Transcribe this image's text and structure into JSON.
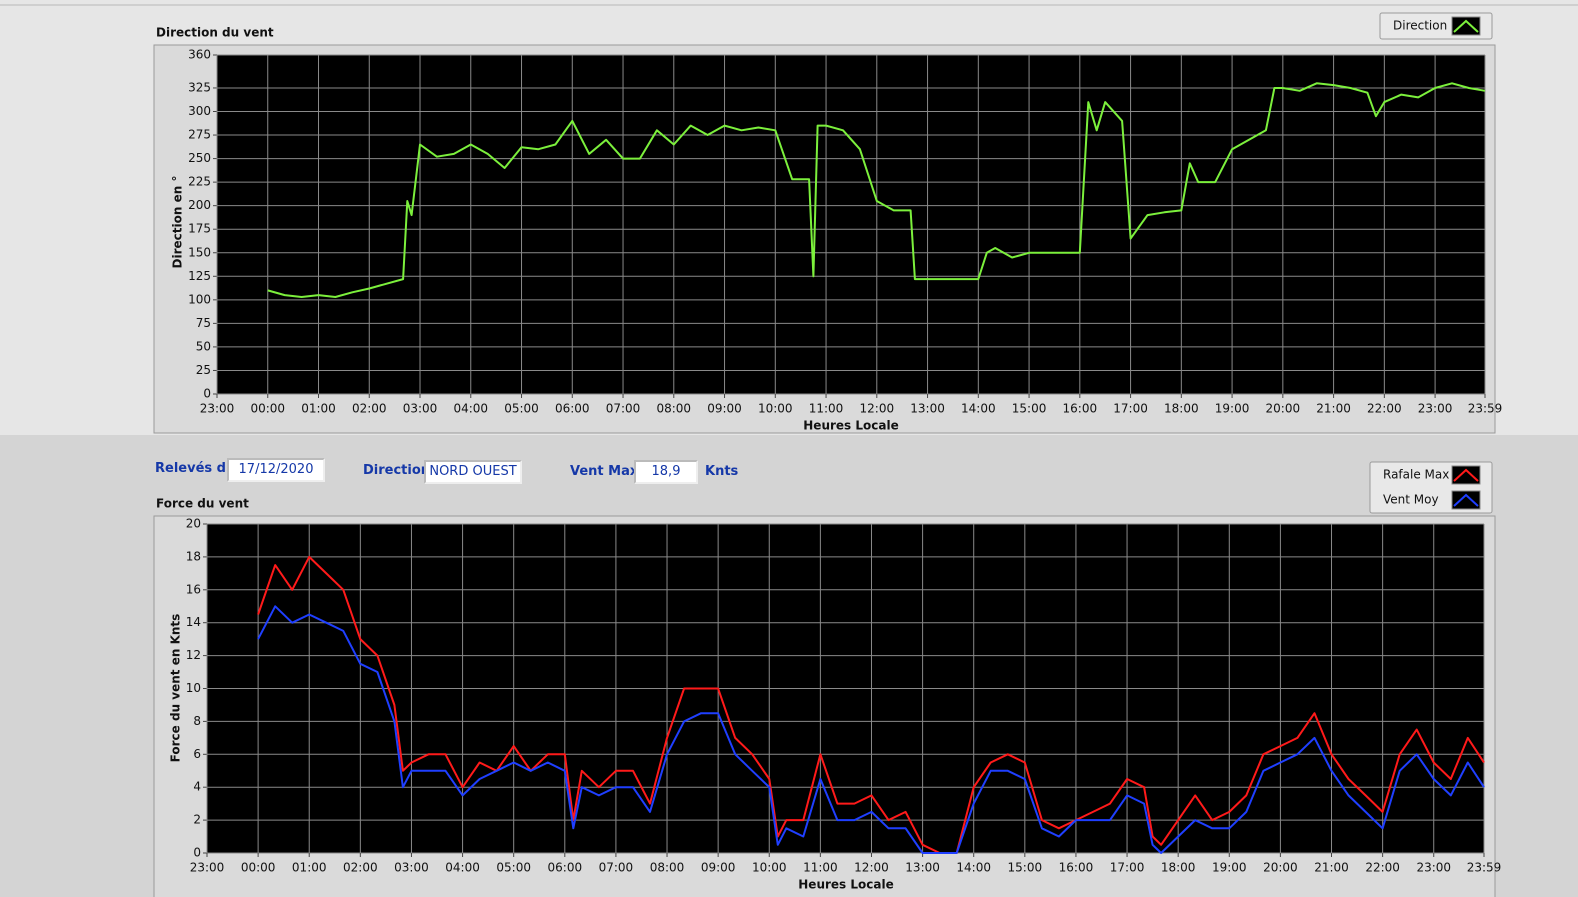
{
  "chart_data": [
    {
      "type": "line",
      "title": "Direction du vent",
      "ylabel": "Direction en °",
      "xlabel": "Heures Locale",
      "xlim": [
        -60,
        1439
      ],
      "xticks": [
        {
          "value": -60,
          "label": "23:00"
        },
        {
          "value": 0,
          "label": "00:00"
        },
        {
          "value": 60,
          "label": "01:00"
        },
        {
          "value": 120,
          "label": "02:00"
        },
        {
          "value": 180,
          "label": "03:00"
        },
        {
          "value": 240,
          "label": "04:00"
        },
        {
          "value": 300,
          "label": "05:00"
        },
        {
          "value": 360,
          "label": "06:00"
        },
        {
          "value": 420,
          "label": "07:00"
        },
        {
          "value": 480,
          "label": "08:00"
        },
        {
          "value": 540,
          "label": "09:00"
        },
        {
          "value": 600,
          "label": "10:00"
        },
        {
          "value": 660,
          "label": "11:00"
        },
        {
          "value": 720,
          "label": "12:00"
        },
        {
          "value": 780,
          "label": "13:00"
        },
        {
          "value": 840,
          "label": "14:00"
        },
        {
          "value": 900,
          "label": "15:00"
        },
        {
          "value": 960,
          "label": "16:00"
        },
        {
          "value": 1020,
          "label": "17:00"
        },
        {
          "value": 1080,
          "label": "18:00"
        },
        {
          "value": 1140,
          "label": "19:00"
        },
        {
          "value": 1200,
          "label": "20:00"
        },
        {
          "value": 1260,
          "label": "21:00"
        },
        {
          "value": 1320,
          "label": "22:00"
        },
        {
          "value": 1380,
          "label": "23:00"
        },
        {
          "value": 1439,
          "label": "23:59"
        }
      ],
      "ylim": [
        0,
        360
      ],
      "yticks": [
        0,
        25,
        50,
        75,
        100,
        125,
        150,
        175,
        200,
        225,
        250,
        275,
        300,
        325,
        360
      ],
      "grid": true,
      "x": [
        0,
        20,
        40,
        60,
        80,
        100,
        120,
        140,
        160,
        165,
        170,
        180,
        200,
        220,
        240,
        260,
        280,
        300,
        320,
        340,
        360,
        380,
        400,
        420,
        440,
        460,
        480,
        500,
        520,
        540,
        560,
        580,
        600,
        620,
        640,
        645,
        650,
        660,
        680,
        700,
        720,
        740,
        760,
        765,
        780,
        800,
        820,
        840,
        850,
        860,
        880,
        900,
        960,
        970,
        980,
        990,
        1010,
        1020,
        1040,
        1060,
        1080,
        1090,
        1100,
        1120,
        1140,
        1160,
        1180,
        1190,
        1200,
        1220,
        1240,
        1260,
        1280,
        1300,
        1310,
        1320,
        1340,
        1360,
        1380,
        1400,
        1420,
        1439
      ],
      "series": [
        {
          "name": "Direction",
          "color": "#7cf03c",
          "values": [
            110,
            105,
            103,
            105,
            103,
            108,
            112,
            117,
            122,
            205,
            190,
            265,
            252,
            255,
            265,
            255,
            240,
            262,
            260,
            265,
            290,
            255,
            270,
            250,
            250,
            280,
            265,
            285,
            275,
            285,
            280,
            283,
            280,
            228,
            228,
            125,
            285,
            285,
            280,
            260,
            205,
            195,
            195,
            122,
            122,
            122,
            122,
            122,
            150,
            155,
            145,
            150,
            150,
            310,
            280,
            310,
            290,
            165,
            190,
            193,
            195,
            245,
            225,
            225,
            260,
            270,
            280,
            325,
            325,
            322,
            330,
            328,
            325,
            320,
            295,
            310,
            318,
            315,
            325,
            330,
            325,
            322
          ]
        }
      ]
    },
    {
      "type": "line",
      "title": "Force du vent",
      "ylabel": "Force du vent en Knts",
      "xlabel": "Heures Locale",
      "xlim": [
        -60,
        1439
      ],
      "xticks": [
        {
          "value": -60,
          "label": "23:00"
        },
        {
          "value": 0,
          "label": "00:00"
        },
        {
          "value": 60,
          "label": "01:00"
        },
        {
          "value": 120,
          "label": "02:00"
        },
        {
          "value": 180,
          "label": "03:00"
        },
        {
          "value": 240,
          "label": "04:00"
        },
        {
          "value": 300,
          "label": "05:00"
        },
        {
          "value": 360,
          "label": "06:00"
        },
        {
          "value": 420,
          "label": "07:00"
        },
        {
          "value": 480,
          "label": "08:00"
        },
        {
          "value": 540,
          "label": "09:00"
        },
        {
          "value": 600,
          "label": "10:00"
        },
        {
          "value": 660,
          "label": "11:00"
        },
        {
          "value": 720,
          "label": "12:00"
        },
        {
          "value": 780,
          "label": "13:00"
        },
        {
          "value": 840,
          "label": "14:00"
        },
        {
          "value": 900,
          "label": "15:00"
        },
        {
          "value": 960,
          "label": "16:00"
        },
        {
          "value": 1020,
          "label": "17:00"
        },
        {
          "value": 1080,
          "label": "18:00"
        },
        {
          "value": 1140,
          "label": "19:00"
        },
        {
          "value": 1200,
          "label": "20:00"
        },
        {
          "value": 1260,
          "label": "21:00"
        },
        {
          "value": 1320,
          "label": "22:00"
        },
        {
          "value": 1380,
          "label": "23:00"
        },
        {
          "value": 1439,
          "label": "23:59"
        }
      ],
      "ylim": [
        0,
        20
      ],
      "yticks": [
        0,
        2,
        4,
        6,
        8,
        10,
        12,
        14,
        16,
        18,
        20
      ],
      "grid": true,
      "x": [
        0,
        20,
        40,
        60,
        80,
        100,
        120,
        140,
        160,
        170,
        180,
        200,
        220,
        240,
        260,
        280,
        300,
        320,
        340,
        360,
        370,
        380,
        400,
        420,
        440,
        460,
        480,
        500,
        520,
        540,
        560,
        580,
        600,
        610,
        620,
        640,
        660,
        680,
        700,
        720,
        740,
        760,
        780,
        800,
        820,
        840,
        860,
        880,
        900,
        920,
        940,
        960,
        980,
        1000,
        1020,
        1040,
        1050,
        1060,
        1080,
        1100,
        1120,
        1140,
        1160,
        1180,
        1200,
        1220,
        1240,
        1260,
        1280,
        1300,
        1320,
        1340,
        1360,
        1380,
        1400,
        1420,
        1439
      ],
      "series": [
        {
          "name": "Rafale Max",
          "color": "#ff1a1a",
          "values": [
            14.5,
            17.5,
            16,
            18,
            17,
            16,
            13,
            12,
            9,
            5,
            5.5,
            6,
            6,
            4,
            5.5,
            5,
            6.5,
            5,
            6,
            6,
            2,
            5,
            4,
            5,
            5,
            3,
            7,
            10,
            10,
            10,
            7,
            6,
            4.5,
            1,
            2,
            2,
            6,
            3,
            3,
            3.5,
            2,
            2.5,
            0.5,
            0,
            0,
            4,
            5.5,
            6,
            5.5,
            2,
            1.5,
            2,
            2.5,
            3,
            4.5,
            4,
            1,
            0.5,
            2,
            3.5,
            2,
            2.5,
            3.5,
            6,
            6.5,
            7,
            8.5,
            6,
            4.5,
            3.5,
            2.5,
            6,
            7.5,
            5.5,
            4.5,
            7,
            5.5
          ]
        },
        {
          "name": "Vent Moy",
          "color": "#1f3fff",
          "values": [
            13,
            15,
            14,
            14.5,
            14,
            13.5,
            11.5,
            11,
            8,
            4,
            5,
            5,
            5,
            3.5,
            4.5,
            5,
            5.5,
            5,
            5.5,
            5,
            1.5,
            4,
            3.5,
            4,
            4,
            2.5,
            6,
            8,
            8.5,
            8.5,
            6,
            5,
            4,
            0.5,
            1.5,
            1,
            4.5,
            2,
            2,
            2.5,
            1.5,
            1.5,
            0,
            0,
            0,
            3,
            5,
            5,
            4.5,
            1.5,
            1,
            2,
            2,
            2,
            3.5,
            3,
            0.5,
            0,
            1,
            2,
            1.5,
            1.5,
            2.5,
            5,
            5.5,
            6,
            7,
            5,
            3.5,
            2.5,
            1.5,
            5,
            6,
            4.5,
            3.5,
            5.5,
            4
          ]
        }
      ]
    }
  ],
  "readouts": [
    {
      "label": "Relevés du",
      "value": "17/12/2020"
    },
    {
      "label": "Direction",
      "value": "NORD OUEST"
    },
    {
      "label": "Vent Max",
      "value": "18,9",
      "unit": "Knts"
    }
  ]
}
